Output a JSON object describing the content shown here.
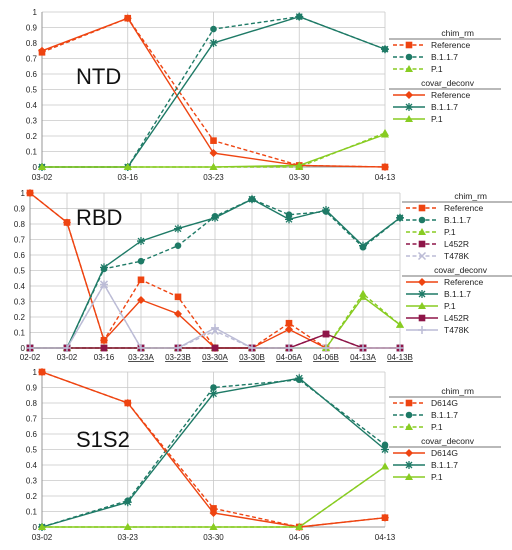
{
  "colors": {
    "Reference": "#ee4411",
    "D614G": "#ee4411",
    "B.1.1.7": "#1e7a66",
    "P.1": "#88cc22",
    "L452R": "#8e1548",
    "T478K": "#bcbcd6"
  },
  "chart_data": [
    {
      "type": "line",
      "title": "NTD",
      "categories": [
        "03-02",
        "03-16",
        "03-23",
        "03-30",
        "04-13"
      ],
      "ylim": [
        0,
        1
      ],
      "yticks": [
        "0",
        "0.1",
        "0.2",
        "0.3",
        "0.4",
        "0.5",
        "0.6",
        "0.7",
        "0.8",
        "0.9",
        "1"
      ],
      "grid": true,
      "legend": "right",
      "groups": [
        {
          "name": "chim_rm",
          "style": "dashed",
          "series": [
            {
              "name": "Reference",
              "values": [
                0.74,
                0.96,
                0.17,
                0.01,
                0.0
              ]
            },
            {
              "name": "B.1.1.7",
              "values": [
                0.0,
                0.0,
                0.89,
                0.97,
                0.76
              ]
            },
            {
              "name": "P.1",
              "values": [
                0.0,
                0.0,
                0.0,
                0.0,
                0.22
              ]
            }
          ]
        },
        {
          "name": "covar_deconv",
          "style": "solid",
          "series": [
            {
              "name": "Reference",
              "values": [
                0.75,
                0.96,
                0.09,
                0.01,
                0.0
              ]
            },
            {
              "name": "B.1.1.7",
              "values": [
                0.0,
                0.0,
                0.8,
                0.97,
                0.76
              ]
            },
            {
              "name": "P.1",
              "values": [
                0.0,
                0.0,
                0.0,
                0.01,
                0.21
              ]
            }
          ]
        }
      ]
    },
    {
      "type": "line",
      "title": "RBD",
      "categories": [
        "02-02",
        "03-02",
        "03-16",
        "03-23A",
        "03-23B",
        "03-30A",
        "03-30B",
        "04-06A",
        "04-06B",
        "04-13A",
        "04-13B"
      ],
      "underlined_ticks": [
        "03-23A",
        "03-23B",
        "03-30A",
        "03-30B",
        "04-06A",
        "04-06B",
        "04-13A",
        "04-13B"
      ],
      "ylim": [
        0,
        1
      ],
      "yticks": [
        "0",
        "0.1",
        "0.2",
        "0.3",
        "0.4",
        "0.5",
        "0.6",
        "0.7",
        "0.8",
        "0.9",
        "1"
      ],
      "grid": true,
      "legend": "right",
      "groups": [
        {
          "name": "chim_rm",
          "style": "dashed",
          "series": [
            {
              "name": "Reference",
              "values": [
                1.0,
                0.81,
                0.05,
                0.44,
                0.33,
                0.0,
                0.0,
                0.16,
                0.0,
                0.0,
                0.0
              ]
            },
            {
              "name": "B.1.1.7",
              "values": [
                0.0,
                0.0,
                0.51,
                0.56,
                0.66,
                0.85,
                0.96,
                0.86,
                0.88,
                0.65,
                0.84
              ]
            },
            {
              "name": "P.1",
              "values": [
                0.0,
                0.0,
                0.0,
                0.0,
                0.0,
                0.0,
                0.0,
                0.0,
                0.0,
                0.35,
                0.15
              ]
            },
            {
              "name": "L452R",
              "values": [
                0.0,
                0.0,
                0.0,
                0.0,
                0.0,
                0.0,
                0.0,
                0.0,
                0.09,
                0.0,
                0.0
              ]
            },
            {
              "name": "T478K",
              "values": [
                0.0,
                0.0,
                0.41,
                0.0,
                0.0,
                0.11,
                0.0,
                0.0,
                0.0,
                0.0,
                0.0
              ]
            }
          ]
        },
        {
          "name": "covar_deconv",
          "style": "solid",
          "series": [
            {
              "name": "Reference",
              "values": [
                1.0,
                0.81,
                0.05,
                0.31,
                0.22,
                0.0,
                0.0,
                0.12,
                0.0,
                0.0,
                0.0
              ]
            },
            {
              "name": "B.1.1.7",
              "values": [
                0.0,
                0.0,
                0.52,
                0.69,
                0.77,
                0.84,
                0.96,
                0.83,
                0.89,
                0.66,
                0.84
              ]
            },
            {
              "name": "P.1",
              "values": [
                0.0,
                0.0,
                0.0,
                0.0,
                0.0,
                0.0,
                0.0,
                0.0,
                0.0,
                0.33,
                0.15
              ]
            },
            {
              "name": "L452R",
              "values": [
                0.0,
                0.0,
                0.0,
                0.0,
                0.0,
                0.0,
                0.0,
                0.0,
                0.09,
                0.0,
                0.0
              ]
            },
            {
              "name": "T478K",
              "values": [
                0.0,
                0.0,
                0.41,
                0.0,
                0.0,
                0.13,
                0.0,
                0.0,
                0.0,
                0.0,
                0.0
              ]
            }
          ]
        }
      ]
    },
    {
      "type": "line",
      "title": "S1S2",
      "categories": [
        "03-02",
        "03-23",
        "03-30",
        "04-06",
        "04-13"
      ],
      "ylim": [
        0,
        1
      ],
      "yticks": [
        "0",
        "0.1",
        "0.2",
        "0.3",
        "0.4",
        "0.5",
        "0.6",
        "0.7",
        "0.8",
        "0.9",
        "1"
      ],
      "grid": true,
      "legend": "right",
      "groups": [
        {
          "name": "chim_rm",
          "style": "dashed",
          "series": [
            {
              "name": "D614G",
              "values": [
                1.0,
                0.8,
                0.12,
                0.0,
                0.06
              ]
            },
            {
              "name": "B.1.1.7",
              "values": [
                0.0,
                0.17,
                0.9,
                0.95,
                0.53
              ]
            },
            {
              "name": "P.1",
              "values": [
                0.0,
                0.0,
                0.0,
                0.0,
                0.39
              ]
            }
          ]
        },
        {
          "name": "covar_deconv",
          "style": "solid",
          "series": [
            {
              "name": "D614G",
              "values": [
                1.0,
                0.8,
                0.09,
                0.0,
                0.06
              ]
            },
            {
              "name": "B.1.1.7",
              "values": [
                0.0,
                0.16,
                0.86,
                0.96,
                0.5
              ]
            },
            {
              "name": "P.1",
              "values": [
                0.0,
                0.0,
                0.0,
                0.0,
                0.39
              ]
            }
          ]
        }
      ]
    }
  ]
}
